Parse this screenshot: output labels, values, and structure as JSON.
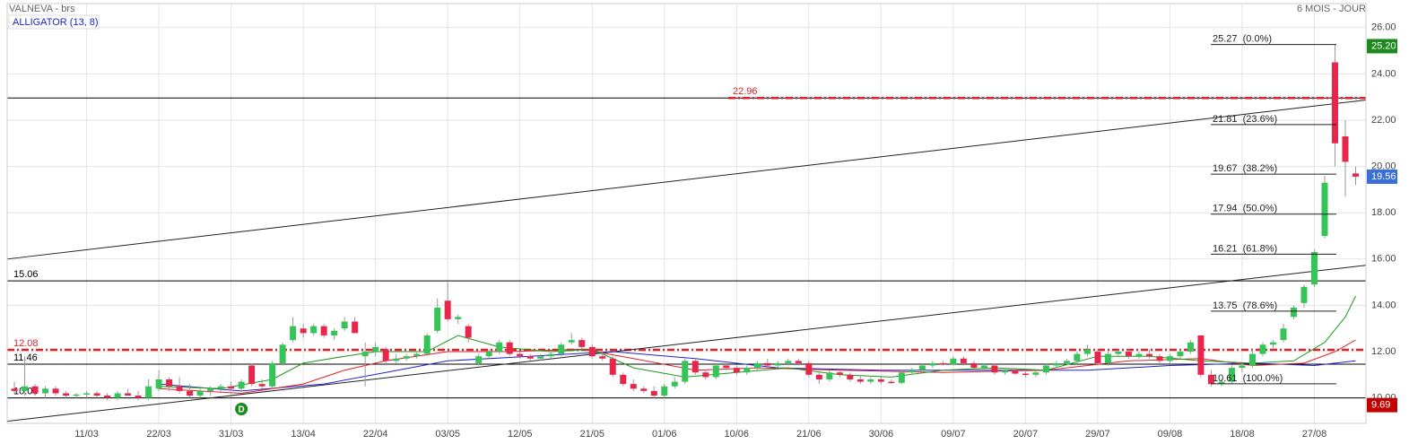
{
  "chart_data": {
    "type": "candlestick",
    "title": "VALNEVA - brs",
    "period": "6 MOIS - JOUR",
    "indicator": "ALLIGATOR (13, 8)",
    "categories": [
      null,
      null,
      null,
      null,
      null,
      null,
      null,
      "11/03",
      null,
      null,
      null,
      null,
      null,
      null,
      "22/03",
      null,
      null,
      null,
      null,
      null,
      null,
      "31/03",
      null,
      null,
      null,
      null,
      null,
      null,
      "13/04",
      null,
      null,
      null,
      null,
      null,
      null,
      "22/04",
      null,
      null,
      null,
      null,
      null,
      null,
      "03/05",
      null,
      null,
      null,
      null,
      null,
      null,
      "12/05",
      null,
      null,
      null,
      null,
      null,
      null,
      "21/05",
      null,
      null,
      null,
      null,
      null,
      null,
      "01/06",
      null,
      null,
      null,
      null,
      null,
      null,
      "10/06",
      null,
      null,
      null,
      null,
      null,
      null,
      "21/06",
      null,
      null,
      null,
      null,
      null,
      null,
      "30/06",
      null,
      null,
      null,
      null,
      null,
      null,
      "09/07",
      null,
      null,
      null,
      null,
      null,
      null,
      "20/07",
      null,
      null,
      null,
      null,
      null,
      null,
      "29/07",
      null,
      null,
      null,
      null,
      null,
      null,
      "09/08",
      null,
      null,
      null,
      null,
      null,
      null,
      "18/08",
      null,
      null,
      null,
      null,
      null,
      null,
      "27/08",
      null,
      null,
      null,
      null
    ],
    "ohlc": [
      [
        10.4,
        10.7,
        10.2,
        10.3
      ],
      [
        10.3,
        11.8,
        10.1,
        10.5
      ],
      [
        10.5,
        10.6,
        10.1,
        10.2
      ],
      [
        10.2,
        10.5,
        10.0,
        10.4
      ],
      [
        10.4,
        10.5,
        10.1,
        10.2
      ],
      [
        10.2,
        10.3,
        10.0,
        10.1
      ],
      [
        10.1,
        10.2,
        10.0,
        10.15
      ],
      [
        10.15,
        10.3,
        10.0,
        10.2
      ],
      [
        10.2,
        10.3,
        10.0,
        10.1
      ],
      [
        10.1,
        10.2,
        9.9,
        10.0
      ],
      [
        10.0,
        10.3,
        9.9,
        10.2
      ],
      [
        10.2,
        10.4,
        10.1,
        10.1
      ],
      [
        10.1,
        10.3,
        9.9,
        10.0
      ],
      [
        10.0,
        10.8,
        9.9,
        10.5
      ],
      [
        10.4,
        11.2,
        10.3,
        10.8
      ],
      [
        10.8,
        10.9,
        10.3,
        10.5
      ],
      [
        10.5,
        10.9,
        10.2,
        10.3
      ],
      [
        10.3,
        10.6,
        10.0,
        10.1
      ],
      [
        10.1,
        10.4,
        10.0,
        10.3
      ],
      [
        10.3,
        10.5,
        10.1,
        10.4
      ],
      [
        10.4,
        10.6,
        10.2,
        10.5
      ],
      [
        10.5,
        10.7,
        10.3,
        10.4
      ],
      [
        10.4,
        10.8,
        10.3,
        10.7
      ],
      [
        11.4,
        11.5,
        10.5,
        10.6
      ],
      [
        10.6,
        10.8,
        10.4,
        10.5
      ],
      [
        10.5,
        11.6,
        10.4,
        11.5
      ],
      [
        11.5,
        12.4,
        11.4,
        12.3
      ],
      [
        12.5,
        13.5,
        12.4,
        13.1
      ],
      [
        13.0,
        13.2,
        12.6,
        12.8
      ],
      [
        12.8,
        13.2,
        12.7,
        13.1
      ],
      [
        13.1,
        13.2,
        12.6,
        12.7
      ],
      [
        12.7,
        13.0,
        12.5,
        12.9
      ],
      [
        13.0,
        13.5,
        12.9,
        13.3
      ],
      [
        13.3,
        13.5,
        12.8,
        12.8
      ],
      [
        11.8,
        12.4,
        10.5,
        12.0
      ],
      [
        12.0,
        12.4,
        11.8,
        12.2
      ],
      [
        12.1,
        12.2,
        11.4,
        11.6
      ],
      [
        11.6,
        11.9,
        11.5,
        11.7
      ],
      [
        11.7,
        11.9,
        11.6,
        11.8
      ],
      [
        11.8,
        12.0,
        11.7,
        11.9
      ],
      [
        11.9,
        12.8,
        11.8,
        12.7
      ],
      [
        12.9,
        14.3,
        12.8,
        13.9
      ],
      [
        14.2,
        15.0,
        13.3,
        13.4
      ],
      [
        13.4,
        13.6,
        13.2,
        13.5
      ],
      [
        13.1,
        13.2,
        12.4,
        12.6
      ],
      [
        11.5,
        11.9,
        11.4,
        11.8
      ],
      [
        11.8,
        12.1,
        11.7,
        12.0
      ],
      [
        12.0,
        12.5,
        11.9,
        12.4
      ],
      [
        12.4,
        12.5,
        11.8,
        11.9
      ],
      [
        11.9,
        12.0,
        11.7,
        11.8
      ],
      [
        11.8,
        11.9,
        11.6,
        11.7
      ],
      [
        11.7,
        11.9,
        11.6,
        11.8
      ],
      [
        11.8,
        12.0,
        11.7,
        11.9
      ],
      [
        11.9,
        12.4,
        11.8,
        12.3
      ],
      [
        12.4,
        12.8,
        12.3,
        12.5
      ],
      [
        12.5,
        12.6,
        12.1,
        12.2
      ],
      [
        12.2,
        12.3,
        11.7,
        11.8
      ],
      [
        11.8,
        12.0,
        11.6,
        11.7
      ],
      [
        11.7,
        11.8,
        10.9,
        11.0
      ],
      [
        11.0,
        11.1,
        10.5,
        10.6
      ],
      [
        10.6,
        10.8,
        10.3,
        10.4
      ],
      [
        10.4,
        10.5,
        10.2,
        10.3
      ],
      [
        10.3,
        10.5,
        10.0,
        10.1
      ],
      [
        10.1,
        10.6,
        10.0,
        10.5
      ],
      [
        10.5,
        10.9,
        10.4,
        10.7
      ],
      [
        10.7,
        11.7,
        10.6,
        11.6
      ],
      [
        11.6,
        11.7,
        11.0,
        11.1
      ],
      [
        11.1,
        11.2,
        10.8,
        10.9
      ],
      [
        10.9,
        11.5,
        10.8,
        11.4
      ],
      [
        11.4,
        11.5,
        11.2,
        11.3
      ],
      [
        11.3,
        11.4,
        11.0,
        11.1
      ],
      [
        11.1,
        11.4,
        11.0,
        11.3
      ],
      [
        11.3,
        11.6,
        11.2,
        11.5
      ],
      [
        11.5,
        11.7,
        11.3,
        11.4
      ],
      [
        11.4,
        11.6,
        11.3,
        11.5
      ],
      [
        11.5,
        11.7,
        11.4,
        11.6
      ],
      [
        11.6,
        11.7,
        11.4,
        11.5
      ],
      [
        11.5,
        11.6,
        10.9,
        11.0
      ],
      [
        11.0,
        11.1,
        10.6,
        10.8
      ],
      [
        10.8,
        11.2,
        10.7,
        11.1
      ],
      [
        11.1,
        11.2,
        10.9,
        11.0
      ],
      [
        11.0,
        11.1,
        10.7,
        10.8
      ],
      [
        10.8,
        11.0,
        10.6,
        10.7
      ],
      [
        10.7,
        10.9,
        10.6,
        10.8
      ],
      [
        10.8,
        10.9,
        10.6,
        10.7
      ],
      [
        10.7,
        10.8,
        10.6,
        10.65
      ],
      [
        10.65,
        11.2,
        10.6,
        11.1
      ],
      [
        11.1,
        11.3,
        11.0,
        11.2
      ],
      [
        11.2,
        11.5,
        11.1,
        11.4
      ],
      [
        11.4,
        11.6,
        11.3,
        11.5
      ],
      [
        11.5,
        11.6,
        11.4,
        11.45
      ],
      [
        11.45,
        11.8,
        11.4,
        11.7
      ],
      [
        11.7,
        11.8,
        11.4,
        11.5
      ],
      [
        11.5,
        11.6,
        11.2,
        11.3
      ],
      [
        11.3,
        11.5,
        11.2,
        11.4
      ],
      [
        11.4,
        11.5,
        11.0,
        11.1
      ],
      [
        11.1,
        11.3,
        11.0,
        11.2
      ],
      [
        11.2,
        11.3,
        11.0,
        11.05
      ],
      [
        11.05,
        11.2,
        10.9,
        11.0
      ],
      [
        11.0,
        11.2,
        10.9,
        11.1
      ],
      [
        11.1,
        11.5,
        11.0,
        11.4
      ],
      [
        11.4,
        11.6,
        11.3,
        11.5
      ],
      [
        11.5,
        11.7,
        11.4,
        11.6
      ],
      [
        11.6,
        12.0,
        11.5,
        11.9
      ],
      [
        11.9,
        12.3,
        11.8,
        12.1
      ],
      [
        12.0,
        12.1,
        11.4,
        11.5
      ],
      [
        11.5,
        12.0,
        11.4,
        11.9
      ],
      [
        11.9,
        12.1,
        11.8,
        12.0
      ],
      [
        12.0,
        12.1,
        11.7,
        11.8
      ],
      [
        11.8,
        12.0,
        11.7,
        11.9
      ],
      [
        11.9,
        12.1,
        11.7,
        11.8
      ],
      [
        11.8,
        11.9,
        11.5,
        11.6
      ],
      [
        11.6,
        11.9,
        11.5,
        11.8
      ],
      [
        11.8,
        12.1,
        11.7,
        12.0
      ],
      [
        12.0,
        12.5,
        11.9,
        12.4
      ],
      [
        12.7,
        12.7,
        10.9,
        11.0
      ],
      [
        11.0,
        11.2,
        10.5,
        10.6
      ],
      [
        10.6,
        10.8,
        10.5,
        10.7
      ],
      [
        10.7,
        11.4,
        10.6,
        11.3
      ],
      [
        11.3,
        11.5,
        11.1,
        11.4
      ],
      [
        11.4,
        12.1,
        11.3,
        11.9
      ],
      [
        11.9,
        12.4,
        11.8,
        12.3
      ],
      [
        12.3,
        12.5,
        12.1,
        12.4
      ],
      [
        12.5,
        13.2,
        12.4,
        13.0
      ],
      [
        13.5,
        14.0,
        13.4,
        13.9
      ],
      [
        14.1,
        14.9,
        13.9,
        14.8
      ],
      [
        14.9,
        16.4,
        14.8,
        16.3
      ],
      [
        17.0,
        19.6,
        16.9,
        19.3
      ],
      [
        24.5,
        25.27,
        20.0,
        21.0
      ],
      [
        21.3,
        22.0,
        18.7,
        20.2
      ],
      [
        19.7,
        20.0,
        19.2,
        19.56
      ]
    ],
    "up_color": "#35c457",
    "down_color": "#e8254b",
    "lines": [
      {
        "color": "#2222cc",
        "x": [
          14,
          22,
          30,
          36,
          42,
          50,
          58,
          66,
          74,
          84,
          94,
          104,
          112,
          120,
          126,
          130
        ],
        "values": [
          10.6,
          10.3,
          10.6,
          11.1,
          11.6,
          11.8,
          12.0,
          11.7,
          11.3,
          11.2,
          11.2,
          11.2,
          11.4,
          11.5,
          11.4,
          11.6
        ]
      },
      {
        "color": "#e0202a",
        "x": [
          14,
          22,
          28,
          32,
          36,
          42,
          48,
          55,
          60,
          66,
          72,
          80,
          90,
          100,
          108,
          115,
          120,
          125,
          128,
          130
        ],
        "values": [
          10.4,
          10.2,
          10.6,
          11.2,
          11.6,
          12.0,
          12.0,
          12.1,
          11.7,
          11.2,
          11.3,
          11.2,
          11.1,
          11.2,
          11.6,
          11.7,
          11.4,
          11.5,
          12.0,
          12.5
        ]
      },
      {
        "color": "#1a9a1a",
        "x": [
          14,
          20,
          25,
          28,
          32,
          35,
          40,
          43,
          47,
          52,
          56,
          60,
          65,
          70,
          75,
          80,
          85,
          90,
          95,
          100,
          105,
          110,
          115,
          120,
          124,
          127,
          129,
          130
        ],
        "values": [
          10.5,
          10.4,
          10.8,
          11.5,
          11.8,
          12.0,
          12.0,
          12.7,
          12.2,
          12.0,
          12.1,
          11.3,
          10.9,
          11.1,
          11.3,
          11.0,
          10.9,
          11.2,
          11.3,
          11.2,
          11.8,
          11.8,
          11.6,
          11.5,
          11.6,
          12.4,
          13.5,
          14.4
        ]
      }
    ],
    "trendlines": [
      {
        "x": [
          -0.7,
          131
        ],
        "values": [
          16.0,
          22.87
        ]
      },
      {
        "x": [
          -0.7,
          131
        ],
        "values": [
          8.99,
          15.73
        ]
      }
    ],
    "levels": [
      {
        "value": 22.96,
        "label": "22.96",
        "color": "#e0202a"
      },
      {
        "value": 15.06,
        "label": "15.06",
        "color": "#000000"
      },
      {
        "value": 12.08,
        "label": "12.08",
        "color": "#e0202a"
      },
      {
        "value": 11.46,
        "label": "11.46",
        "color": "#000000"
      },
      {
        "value": 10.0,
        "label": "10.00",
        "color": "#000000"
      }
    ],
    "fibonacci": [
      {
        "value": 25.27,
        "label": "25.27  (0.0%)"
      },
      {
        "value": 21.81,
        "label": "21.81  (23.6%)"
      },
      {
        "value": 19.67,
        "label": "19.67  (38.2%)"
      },
      {
        "value": 17.94,
        "label": "17.94  (50.0%)"
      },
      {
        "value": 16.21,
        "label": "16.21  (61.8%)"
      },
      {
        "value": 13.75,
        "label": "13.75  (78.6%)"
      },
      {
        "value": 10.61,
        "label": "10.61  (100.0%)"
      }
    ],
    "price_tags": [
      {
        "value": 25.2,
        "label": "25.20",
        "color": "#1e8a1e"
      },
      {
        "value": 19.56,
        "label": "19.56",
        "color": "#3a6fd8"
      },
      {
        "value": 9.69,
        "label": "9.69",
        "color": "#c00000"
      }
    ],
    "markers": [
      {
        "x": 22,
        "label": "D",
        "color": "#1a8a1a"
      }
    ],
    "xlim": [
      -0.7,
      131
    ],
    "ylim": [
      8.9,
      27.0
    ],
    "yticks": [
      {
        "value": 10,
        "label": "10.00"
      },
      {
        "value": 12,
        "label": "12.00"
      },
      {
        "value": 14,
        "label": "14.00"
      },
      {
        "value": 16,
        "label": "16.00"
      },
      {
        "value": 18,
        "label": "18.00"
      },
      {
        "value": 20,
        "label": "20.00"
      },
      {
        "value": 22,
        "label": "22.00"
      },
      {
        "value": 24,
        "label": "24.00"
      },
      {
        "value": 26,
        "label": "26.00"
      }
    ],
    "grid": true
  }
}
